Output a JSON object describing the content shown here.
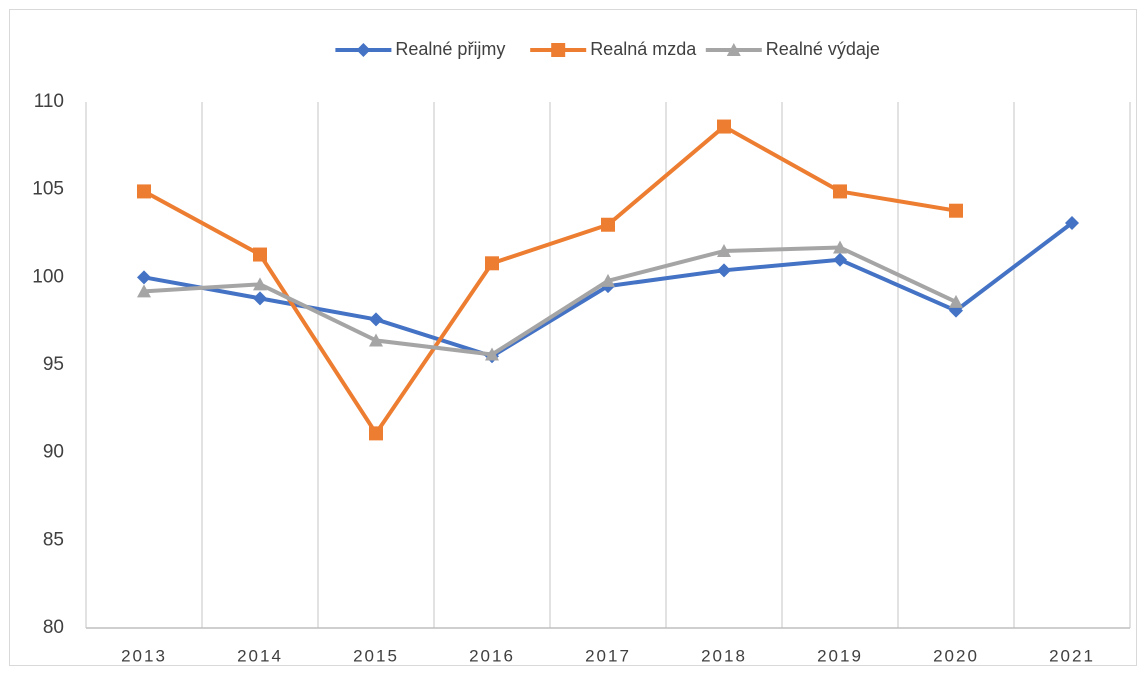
{
  "chart_data": {
    "type": "line",
    "categories": [
      "2013",
      "2014",
      "2015",
      "2016",
      "2017",
      "2018",
      "2019",
      "2020",
      "2021"
    ],
    "series": [
      {
        "name": "Realné přijmy",
        "color": "#4472c4",
        "marker": "diamond",
        "values": [
          100.0,
          98.8,
          97.6,
          95.5,
          99.5,
          100.4,
          101.0,
          98.1,
          103.1
        ]
      },
      {
        "name": "Realná mzda",
        "color": "#ed7d31",
        "marker": "square",
        "values": [
          104.9,
          101.3,
          91.1,
          100.8,
          103.0,
          108.6,
          104.9,
          103.8,
          null
        ]
      },
      {
        "name": "Realné výdaje",
        "color": "#a5a5a5",
        "marker": "triangle",
        "values": [
          99.2,
          99.6,
          96.4,
          95.6,
          99.8,
          101.5,
          101.7,
          98.6,
          null
        ]
      }
    ],
    "ylim": [
      80,
      110
    ],
    "yticks": [
      80,
      85,
      90,
      95,
      100,
      105,
      110
    ],
    "legend": "top"
  }
}
